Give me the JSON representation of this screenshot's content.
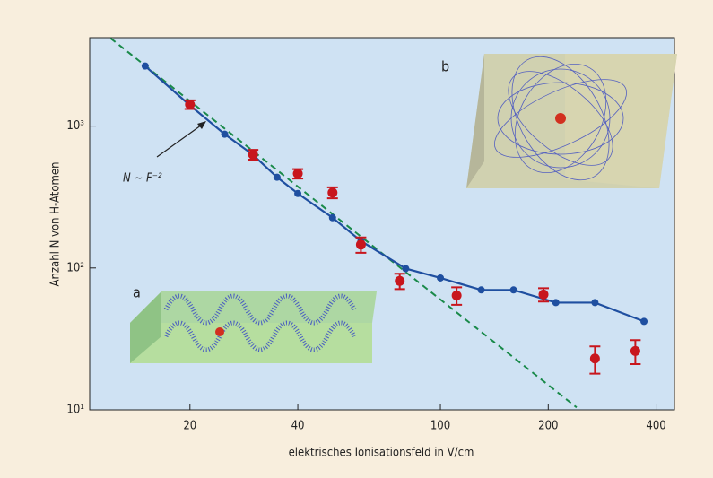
{
  "chart_data": {
    "type": "scatter",
    "log_x": true,
    "log_y": true,
    "xlabel": "elektrisches Ionisationsfeld in V/cm",
    "ylabel": "Anzahl N von H̄-Atomen",
    "xlim": [
      10.5,
      450
    ],
    "ylim": [
      10,
      4200
    ],
    "xticks": [
      20,
      40,
      100,
      200,
      400
    ],
    "yticks": [
      {
        "value": 10,
        "label": "10¹"
      },
      {
        "value": 100,
        "label": "10²"
      },
      {
        "value": 1000,
        "label": "10³"
      }
    ],
    "series": [
      {
        "style": "line-markers",
        "color": "#1f4fa0",
        "x": [
          15,
          20,
          25,
          30,
          35,
          40,
          50,
          60,
          80,
          100,
          130,
          160,
          210,
          270,
          370
        ],
        "values": [
          2650,
          1400,
          877,
          627,
          436,
          335,
          226,
          155,
          99,
          85,
          70,
          70,
          57,
          57,
          42
        ]
      },
      {
        "style": "errorbar",
        "color": "#c8161d",
        "x": [
          20,
          30,
          40,
          50,
          60,
          77,
          111,
          194,
          270,
          350
        ],
        "values": [
          1420,
          630,
          462,
          340,
          146,
          81,
          64,
          65,
          23,
          26
        ],
        "errors": [
          100,
          50,
          35,
          30,
          18,
          10,
          9,
          7,
          5,
          5
        ]
      },
      {
        "style": "dashed",
        "color": "#1a8a4a",
        "x": [
          12,
          240
        ],
        "values": [
          4167,
          10.4
        ]
      }
    ],
    "annotations": [
      {
        "text": "N ~ F⁻²"
      },
      {
        "text": "a"
      },
      {
        "text": "b"
      }
    ]
  }
}
